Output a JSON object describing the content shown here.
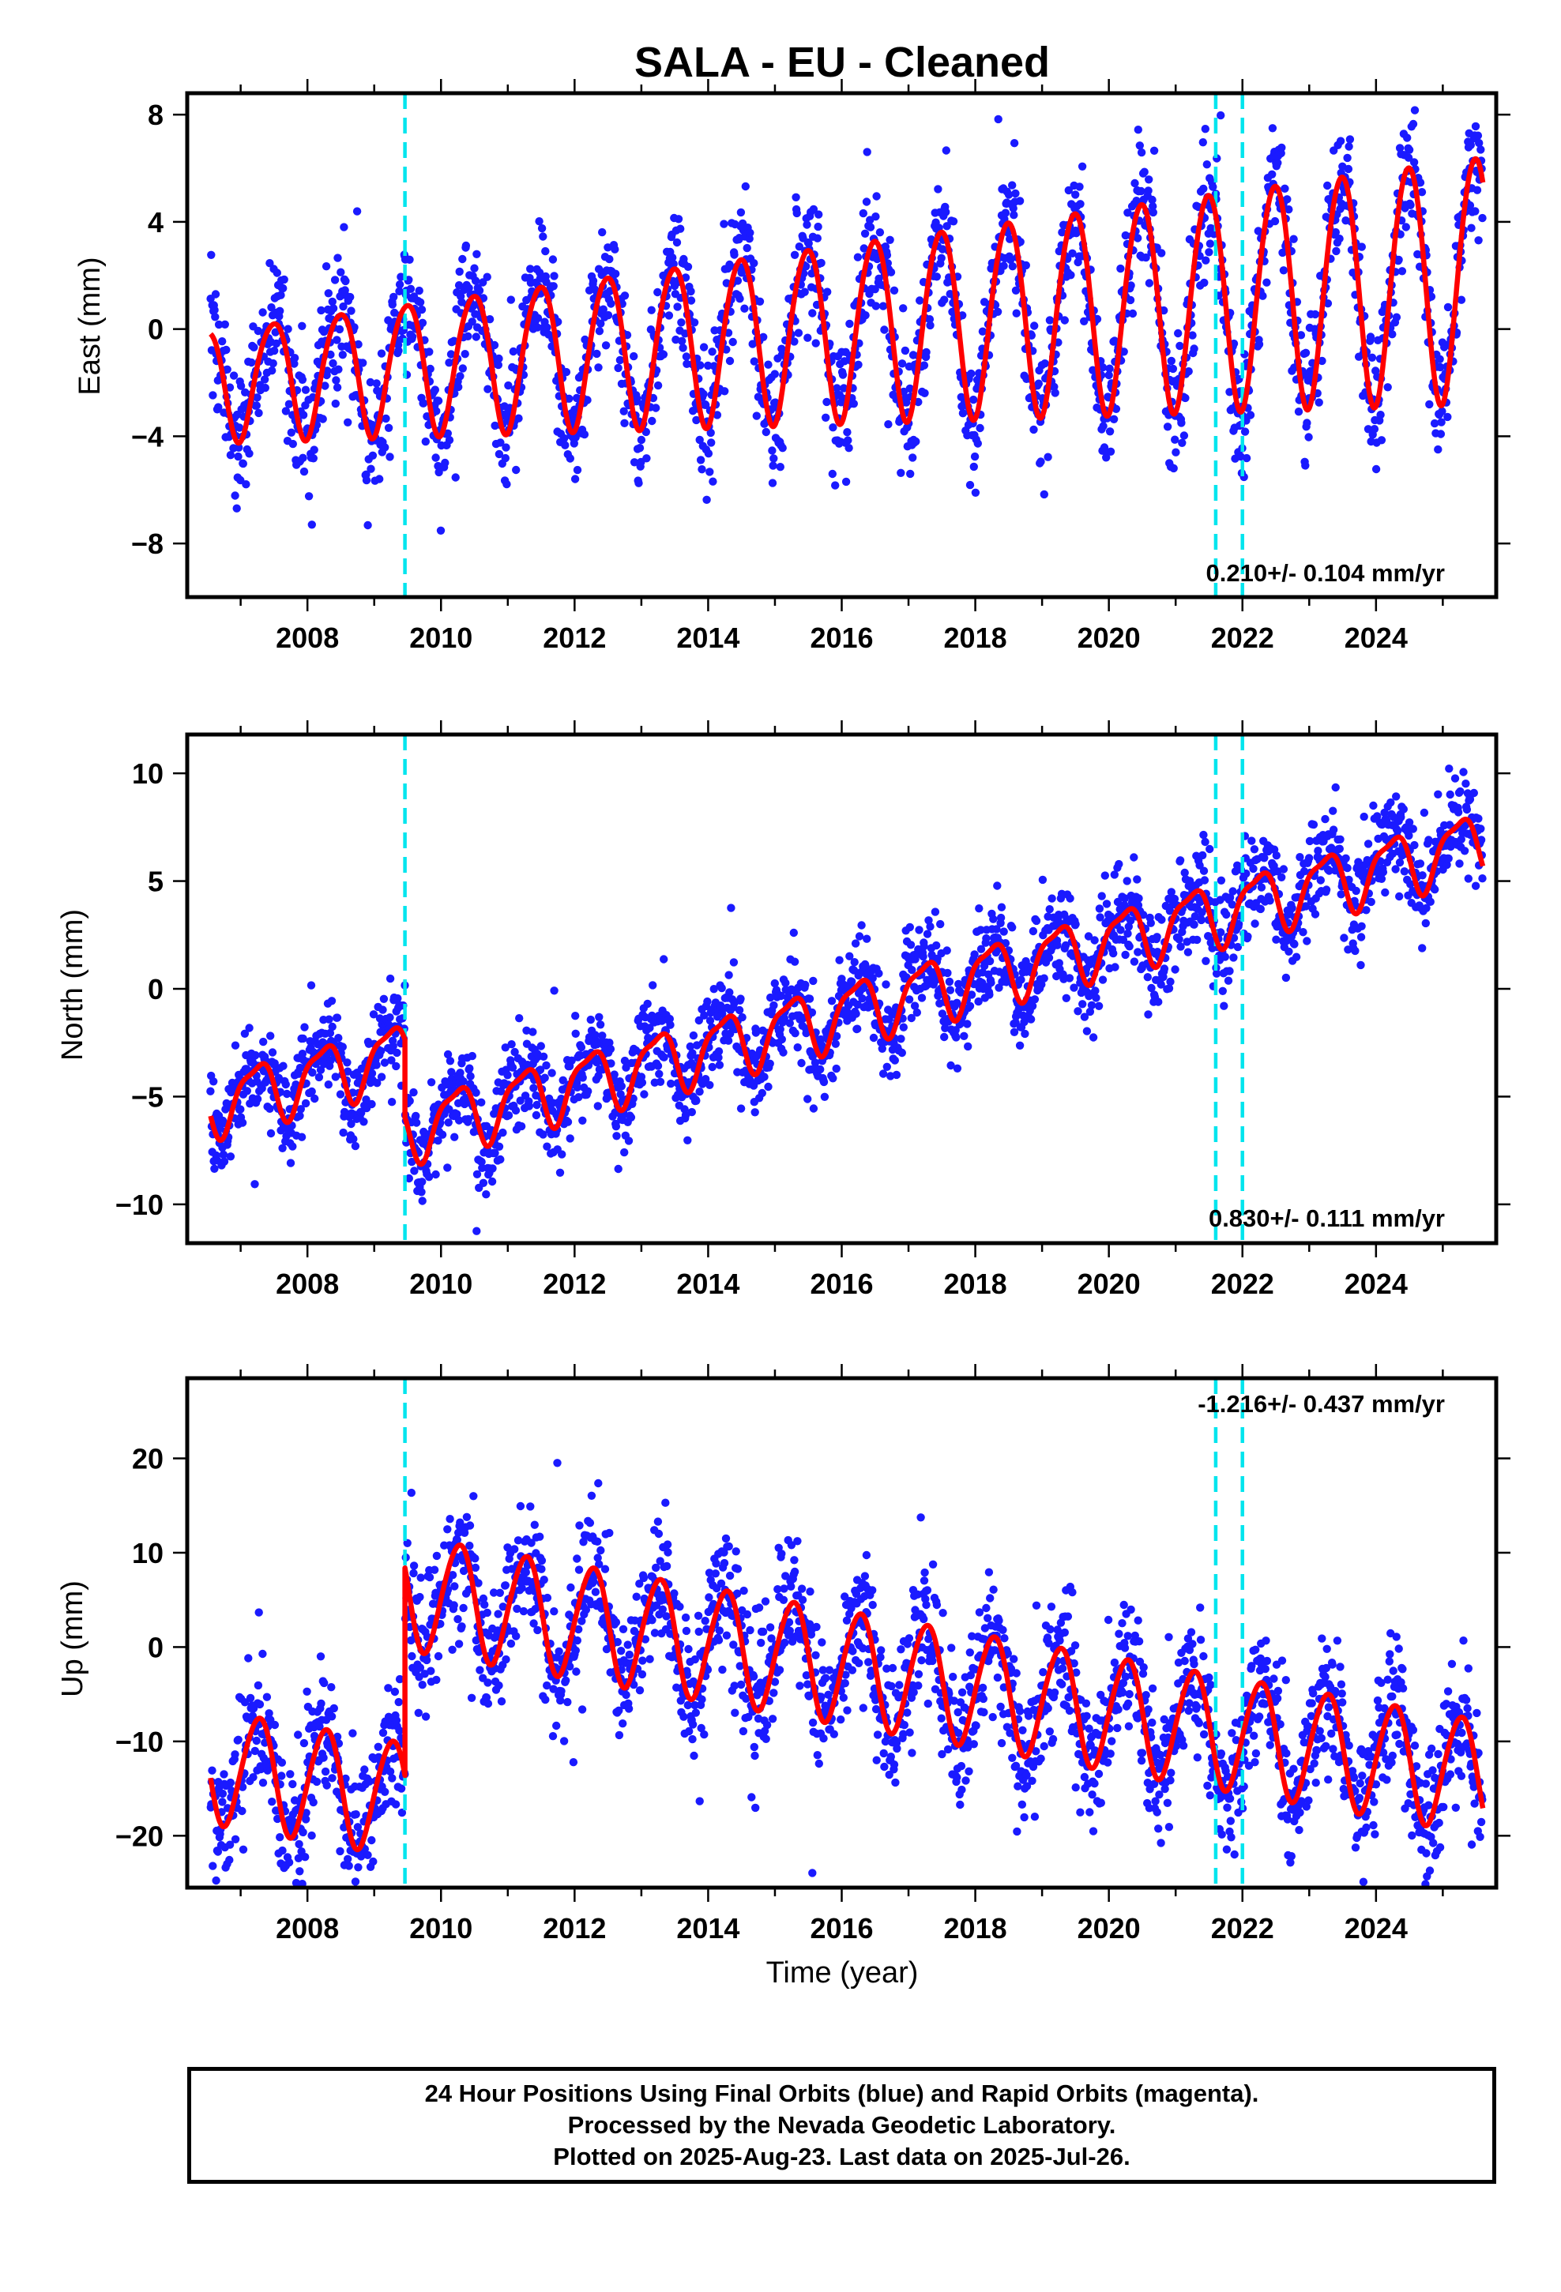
{
  "title": "SALA  - EU - Cleaned",
  "footer": {
    "line1": "24 Hour Positions Using Final Orbits (blue) and Rapid Orbits (magenta).",
    "line2": "Processed by the Nevada Geodetic Laboratory.",
    "line3": "Plotted on 2025-Aug-23. Last data on 2025-Jul-26."
  },
  "colors": {
    "points": "#1a1aff",
    "model": "#ff0000",
    "steps": "#00e5ee",
    "frame": "#000000"
  },
  "chart_data": [
    {
      "type": "scatter",
      "ylabel": "East (mm)",
      "xlabel": "",
      "rate_label": "0.210+/- 0.104 mm/yr",
      "rate_position": "bottom-right",
      "xlim": [
        2006.2,
        2025.8
      ],
      "ylim": [
        -10,
        8.8
      ],
      "xticks": [
        2008,
        2010,
        2012,
        2014,
        2016,
        2018,
        2020,
        2022,
        2024
      ],
      "yticks": [
        -8,
        -4,
        0,
        4,
        8
      ],
      "yticklabels": [
        "−8",
        "−4",
        "0",
        "4",
        "8"
      ],
      "step_epochs": [
        2009.46,
        2021.6,
        2022.0
      ],
      "model": {
        "t_start": 2006.55,
        "t_end": 2025.6,
        "t_ref": 2016.0,
        "offset": 0.0,
        "rate": 0.21,
        "annual_cos": -3.3,
        "annual_sin": 0.4,
        "semiannual_cos": -0.2,
        "semiannual_sin": 0.15,
        "amp_growth": 0.04,
        "jumps": []
      },
      "scatter_sigma": 1.2,
      "grid": false
    },
    {
      "type": "scatter",
      "ylabel": "North (mm)",
      "xlabel": "",
      "rate_label": "0.830+/- 0.111 mm/yr",
      "rate_position": "bottom-right",
      "xlim": [
        2006.2,
        2025.8
      ],
      "ylim": [
        -11.8,
        11.8
      ],
      "xticks": [
        2008,
        2010,
        2012,
        2014,
        2016,
        2018,
        2020,
        2022,
        2024
      ],
      "yticks": [
        -10,
        -5,
        0,
        5,
        10
      ],
      "yticklabels": [
        "−10",
        "−5",
        "0",
        "5",
        "10"
      ],
      "step_epochs": [
        2009.46,
        2021.6,
        2022.0
      ],
      "model": {
        "t_start": 2006.55,
        "t_end": 2025.6,
        "t_ref": 2016.0,
        "offset": -1.1,
        "rate": 0.83,
        "annual_cos": 0.2,
        "annual_sin": 1.4,
        "semiannual_cos": 0.3,
        "semiannual_sin": -0.3,
        "amp_growth": 0.0,
        "jumps": [
          {
            "epoch": 2009.46,
            "size": -3.6
          }
        ]
      },
      "scatter_sigma": 1.1,
      "grid": false
    },
    {
      "type": "scatter",
      "ylabel": "Up (mm)",
      "xlabel": "Time (year)",
      "rate_label": "-1.216+/- 0.437 mm/yr",
      "rate_position": "top-right",
      "xlim": [
        2006.2,
        2025.8
      ],
      "ylim": [
        -25.5,
        28.5
      ],
      "xticks": [
        2008,
        2010,
        2012,
        2014,
        2016,
        2018,
        2020,
        2022,
        2024
      ],
      "yticks": [
        -20,
        -10,
        0,
        10,
        20
      ],
      "yticklabels": [
        "−20",
        "−10",
        "0",
        "10",
        "20"
      ],
      "step_epochs": [
        2009.46,
        2021.6,
        2022.0
      ],
      "model": {
        "t_start": 2006.55,
        "t_end": 2025.6,
        "t_ref": 2016.0,
        "offset": -2.0,
        "rate": -1.216,
        "annual_cos": -0.5,
        "annual_sin": 6.0,
        "semiannual_cos": 0.3,
        "semiannual_sin": -0.4,
        "amp_growth": 0.0,
        "jumps": [
          {
            "epoch": 2009.46,
            "size": 22.0
          }
        ]
      },
      "scatter_sigma": 3.6,
      "grid": false
    }
  ]
}
